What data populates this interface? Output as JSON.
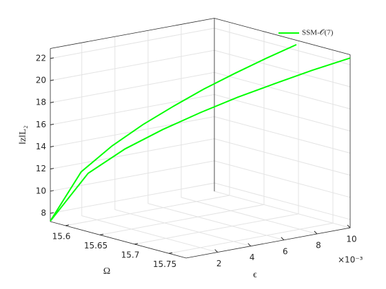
{
  "chart_data": {
    "type": "line3d",
    "xlabel": "Ω",
    "ylabel": "ϵ",
    "zlabel": "‖z‖L₂",
    "y_exponent_label": "×10⁻³",
    "xlim": [
      15.578,
      15.775
    ],
    "xticks": [
      15.6,
      15.65,
      15.7,
      15.75
    ],
    "ylim": [
      0.1,
      10
    ],
    "yticks": [
      2,
      4,
      6,
      8,
      10
    ],
    "zlim": [
      7.25,
      22.9
    ],
    "zticks": [
      8,
      10,
      12,
      14,
      16,
      18,
      20,
      22
    ],
    "grid": true,
    "legend": "northeast",
    "series": [
      {
        "name": "SSM-𝒪(7)",
        "color": "#00ff00",
        "x": [
          15.578,
          15.603,
          15.627,
          15.652,
          15.677,
          15.701,
          15.726,
          15.75,
          15.775,
          null,
          15.578,
          15.593,
          15.608,
          15.623,
          15.638,
          15.652,
          15.667,
          15.682,
          15.697
        ],
        "y": [
          0.1,
          1.34,
          2.58,
          3.81,
          5.05,
          6.29,
          7.53,
          8.76,
          10,
          null,
          0.1,
          1.34,
          2.58,
          3.81,
          5.05,
          6.29,
          7.53,
          8.76,
          10
        ],
        "z": [
          7.3,
          11.69,
          13.96,
          15.79,
          17.4,
          18.84,
          20.17,
          21.42,
          22.6,
          null,
          7.3,
          11.66,
          13.91,
          15.74,
          17.33,
          18.76,
          20.08,
          21.33,
          22.5
        ]
      }
    ]
  }
}
